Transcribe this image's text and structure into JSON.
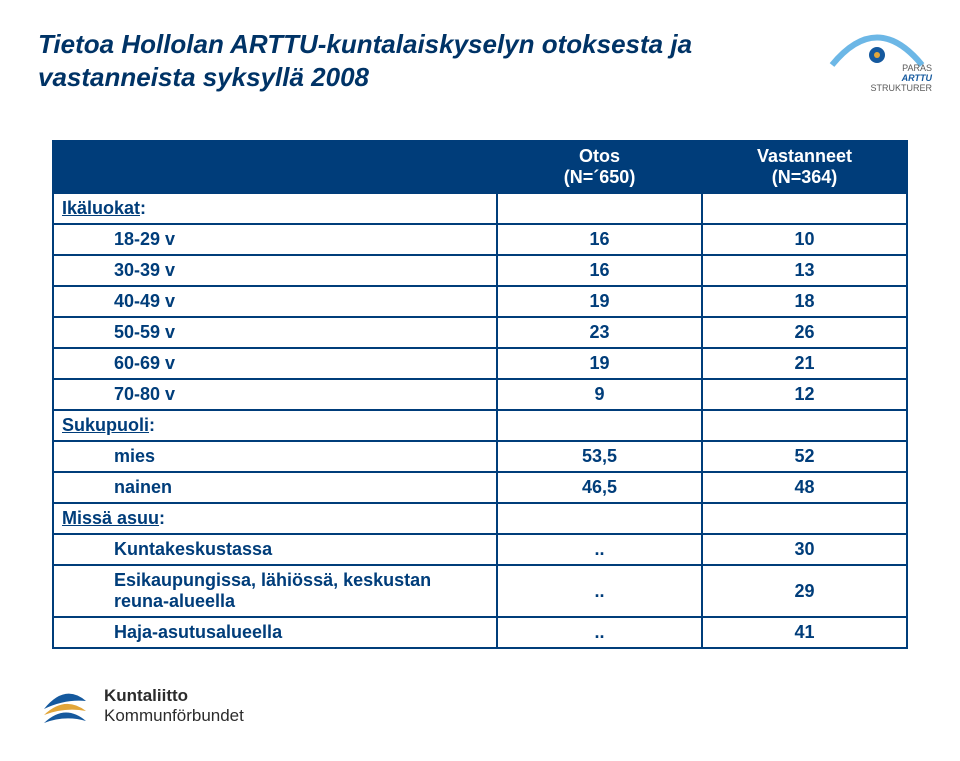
{
  "title": {
    "line1": "Tietoa Hollolan ARTTU-kuntalaiskyselyn otoksesta ja",
    "line2": "vastanneista syksyllä 2008",
    "color": "#003366",
    "fontsize": 26
  },
  "top_logo": {
    "name": "paras-arttu-strukturer",
    "line1": "PARAS",
    "line2": "ARTTU",
    "line3": "STRUKTURER",
    "text_color": "#5a5a5a",
    "arc_color": "#6cb7e6",
    "accent_color": "#15599e"
  },
  "table": {
    "border_color": "#003d7a",
    "header_bg": "#003d7a",
    "header_fg": "#ffffff",
    "cell_bg": "#ffffff",
    "cell_fg": "#003d7a",
    "fontsize": 18,
    "col_widths": [
      "52%",
      "24%",
      "24%"
    ],
    "columns": [
      "",
      "Otos\n(N=´650)",
      "Vastanneet\n(N=364)"
    ],
    "rows": [
      {
        "label": "Ikäluokat:",
        "c1": "",
        "c2": "",
        "group": true
      },
      {
        "label": "18-29 v",
        "c1": "16",
        "c2": "10",
        "sub": true,
        "bold": true
      },
      {
        "label": "30-39 v",
        "c1": "16",
        "c2": "13",
        "sub": true,
        "bold": true
      },
      {
        "label": "40-49 v",
        "c1": "19",
        "c2": "18",
        "sub": true,
        "bold": true
      },
      {
        "label": "50-59 v",
        "c1": "23",
        "c2": "26",
        "sub": true,
        "bold": true
      },
      {
        "label": "60-69 v",
        "c1": "19",
        "c2": "21",
        "sub": true,
        "bold": true
      },
      {
        "label": "70-80 v",
        "c1": "9",
        "c2": "12",
        "sub": true,
        "bold": true
      },
      {
        "label": "Sukupuoli:",
        "c1": "",
        "c2": "",
        "group": true
      },
      {
        "label": "mies",
        "c1": "53,5",
        "c2": "52",
        "sub": true,
        "bold": true
      },
      {
        "label": "nainen",
        "c1": "46,5",
        "c2": "48",
        "sub": true,
        "bold": true
      },
      {
        "label": "Missä asuu:",
        "c1": "",
        "c2": "",
        "group": true
      },
      {
        "label": "Kuntakeskustassa",
        "c1": "..",
        "c2": "30",
        "sub": true,
        "bold": true
      },
      {
        "label": "Esikaupungissa, lähiössä, keskustan reuna-alueella",
        "c1": "..",
        "c2": "29",
        "sub": true,
        "bold": true
      },
      {
        "label": "Haja-asutusalueella",
        "c1": "..",
        "c2": "41",
        "sub": true,
        "bold": true
      }
    ]
  },
  "bottom_logo": {
    "line1": "Kuntaliitto",
    "line2": "Kommunförbundet",
    "text_color": "#2c2c2c",
    "fontsize": 17,
    "swoosh_blue": "#15599e",
    "swoosh_orange": "#e2a63a"
  }
}
